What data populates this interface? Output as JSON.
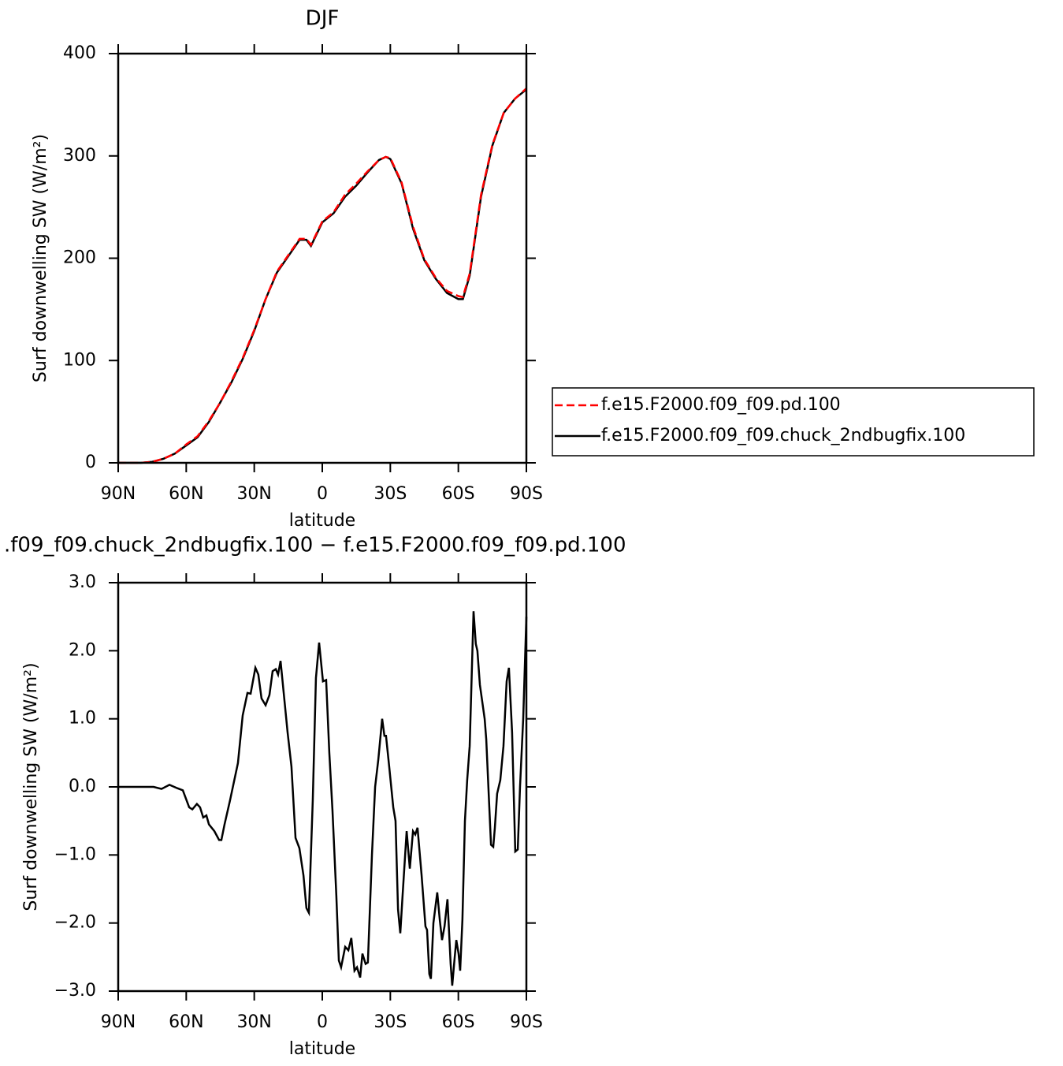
{
  "chart_data": [
    {
      "type": "line",
      "title": "DJF",
      "ylabel": "Surf downwelling SW (W/m²)",
      "xlabel": "latitude",
      "x": [
        90,
        85,
        80,
        75,
        70,
        65,
        60,
        55,
        50,
        45,
        40,
        35,
        30,
        25,
        20,
        15,
        10,
        7,
        5,
        0,
        -5,
        -10,
        -15,
        -20,
        -25,
        -28,
        -30,
        -35,
        -40,
        -45,
        -50,
        -55,
        -60,
        -62,
        -65,
        -70,
        -75,
        -80,
        -85,
        -90
      ],
      "series": [
        {
          "name": "f.e15.F2000.f09_f09.pd.100",
          "color": "#ff0000",
          "line_style": "dashed",
          "values": [
            0,
            0,
            0,
            1,
            4,
            9,
            18,
            26,
            41,
            59,
            80,
            103,
            130,
            160,
            187,
            203,
            219,
            219,
            213,
            236,
            245,
            262,
            273,
            285,
            296,
            299,
            298,
            274,
            231,
            199,
            181,
            168,
            163,
            162,
            185,
            262,
            311,
            342,
            356,
            366
          ]
        },
        {
          "name": "f.e15.F2000.f09_f09.chuck_2ndbugfix.100",
          "color": "#000000",
          "line_style": "solid",
          "values": [
            0,
            0,
            0,
            1,
            4,
            9,
            17,
            25,
            40,
            59,
            79,
            102,
            129,
            160,
            186,
            202,
            218,
            218,
            212,
            235,
            244,
            260,
            271,
            284,
            296,
            299,
            297,
            273,
            229,
            198,
            180,
            166,
            160,
            160,
            183,
            260,
            310,
            342,
            356,
            365
          ]
        }
      ],
      "xlim": [
        90,
        -90
      ],
      "xticks": [
        {
          "value": 90,
          "label": "90N"
        },
        {
          "value": 60,
          "label": "60N"
        },
        {
          "value": 30,
          "label": "30N"
        },
        0,
        {
          "value": -30,
          "label": "30S"
        },
        {
          "value": -60,
          "label": "60S"
        },
        {
          "value": -90,
          "label": "90S"
        }
      ],
      "ylim": [
        0,
        400
      ],
      "yticks": [
        0,
        100,
        200,
        300,
        400
      ],
      "legend": "outside-right"
    },
    {
      "type": "line",
      "title": ".f09_f09.chuck_2ndbugfix.100 − f.e15.F2000.f09_f09.pd.100",
      "ylabel": "Surf downwelling SW (W/m²)",
      "xlabel": "latitude",
      "color": "#000000",
      "x": [
        90,
        83.1,
        74.4,
        70.9,
        67.4,
        63.9,
        61.5,
        58.7,
        57.3,
        55.3,
        53.9,
        52.5,
        51.1,
        50.0,
        47.6,
        45.5,
        44.5,
        43.1,
        40.7,
        37.2,
        35.1,
        33.0,
        31.6,
        29.5,
        28.2,
        26.8,
        25.0,
        23.3,
        21.9,
        20.5,
        19.5,
        18.4,
        15.3,
        13.6,
        11.8,
        10.1,
        8.3,
        7.0,
        5.9,
        4.2,
        2.8,
        1.4,
        -0.3,
        -1.7,
        -3.1,
        -4.5,
        -6.2,
        -7.3,
        -8.3,
        -10.1,
        -11.5,
        -12.8,
        -14.2,
        -15.3,
        -16.7,
        -17.7,
        -19.1,
        -20.1,
        -21.9,
        -23.3,
        -24.7,
        -26.4,
        -27.4,
        -28.1,
        -29.5,
        -31.3,
        -32.3,
        -33.4,
        -34.4,
        -35.4,
        -37.2,
        -38.6,
        -40.0,
        -41.0,
        -42.0,
        -43.8,
        -45.5,
        -46.2,
        -47.2,
        -47.9,
        -49.0,
        -50.7,
        -51.8,
        -52.8,
        -53.9,
        -55.2,
        -56.6,
        -57.3,
        -58.4,
        -59.1,
        -60.1,
        -60.8,
        -61.8,
        -62.9,
        -63.9,
        -65.0,
        -66.7,
        -67.7,
        -68.4,
        -69.5,
        -71.6,
        -72.3,
        -74.4,
        -75.4,
        -76.1,
        -77.1,
        -78.5,
        -79.9,
        -81.3,
        -82.3,
        -83.7,
        -85.1,
        -86.2,
        -87.2,
        -88.6,
        -90
      ],
      "values": [
        0,
        0,
        0,
        -0.03,
        0.03,
        -0.02,
        -0.05,
        -0.3,
        -0.33,
        -0.25,
        -0.3,
        -0.45,
        -0.42,
        -0.55,
        -0.65,
        -0.78,
        -0.78,
        -0.55,
        -0.2,
        0.35,
        1.05,
        1.38,
        1.37,
        1.75,
        1.65,
        1.3,
        1.2,
        1.35,
        1.7,
        1.73,
        1.65,
        1.85,
        0.8,
        0.3,
        -0.75,
        -0.9,
        -1.3,
        -1.78,
        -1.85,
        -0.2,
        1.6,
        2.12,
        1.55,
        1.57,
        0.5,
        -0.35,
        -1.6,
        -2.55,
        -2.65,
        -2.35,
        -2.4,
        -2.22,
        -2.7,
        -2.65,
        -2.8,
        -2.45,
        -2.6,
        -2.58,
        -1.0,
        0,
        0.4,
        1.0,
        0.75,
        0.75,
        0.3,
        -0.3,
        -0.5,
        -1.8,
        -2.15,
        -1.6,
        -0.65,
        -1.2,
        -0.65,
        -0.7,
        -0.6,
        -1.3,
        -2.05,
        -2.1,
        -2.75,
        -2.82,
        -2.0,
        -1.55,
        -1.95,
        -2.25,
        -2.05,
        -1.65,
        -2.6,
        -2.92,
        -2.5,
        -2.25,
        -2.45,
        -2.7,
        -1.95,
        -0.5,
        0.1,
        0.6,
        2.58,
        2.1,
        2.0,
        1.5,
        1.0,
        0.7,
        -0.85,
        -0.88,
        -0.6,
        -0.1,
        0.1,
        0.6,
        1.55,
        1.75,
        0.8,
        -0.95,
        -0.92,
        0,
        1.0,
        2.5
      ],
      "xlim": [
        90,
        -90
      ],
      "xticks": [
        {
          "value": 90,
          "label": "90N"
        },
        {
          "value": 60,
          "label": "60N"
        },
        {
          "value": 30,
          "label": "30N"
        },
        0,
        {
          "value": -30,
          "label": "30S"
        },
        {
          "value": -60,
          "label": "60S"
        },
        {
          "value": -90,
          "label": "90S"
        }
      ],
      "ylim": [
        -3,
        3
      ],
      "yticks": [
        {
          "value": -3,
          "label": "−3.0"
        },
        {
          "value": -2,
          "label": "−2.0"
        },
        {
          "value": -1,
          "label": "−1.0"
        },
        {
          "value": 0,
          "label": "0.0"
        },
        {
          "value": 1,
          "label": "1.0"
        },
        {
          "value": 2,
          "label": "2.0"
        },
        {
          "value": 3,
          "label": "3.0"
        }
      ]
    }
  ]
}
